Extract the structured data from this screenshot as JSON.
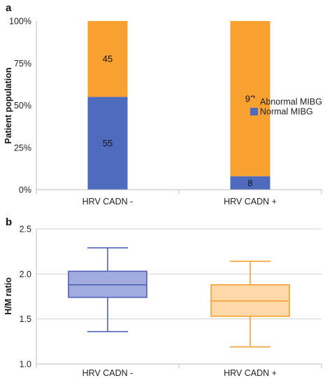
{
  "chart_data": [
    {
      "panel": "a",
      "type": "bar",
      "stacked": true,
      "categories": [
        "HRV CADN -",
        "HRV CADN +"
      ],
      "series": [
        {
          "name": "Normal MIBG",
          "values": [
            55,
            8
          ],
          "color": "#4f6bbd"
        },
        {
          "name": "Abnormal MIBG",
          "values": [
            45,
            92
          ],
          "color": "#f8a030"
        }
      ],
      "data_labels": [
        [
          "55",
          "45"
        ],
        [
          "8",
          "92"
        ]
      ],
      "xlabel": "",
      "ylabel": "Patient population",
      "yticks": [
        "0%",
        "25%",
        "50%",
        "75%",
        "100%"
      ],
      "ylim": [
        0,
        100
      ],
      "legend_position": "right",
      "grid": false
    },
    {
      "panel": "b",
      "type": "box",
      "categories": [
        "HRV CADN -",
        "HRV CADN +"
      ],
      "boxes": [
        {
          "min": 1.36,
          "q1": 1.74,
          "median": 1.88,
          "q3": 2.03,
          "max": 2.29,
          "fill": "#a3acdf",
          "stroke": "#4f62b8"
        },
        {
          "min": 1.19,
          "q1": 1.53,
          "median": 1.7,
          "q3": 1.88,
          "max": 2.14,
          "fill": "#fdd8a8",
          "stroke": "#f8a030"
        }
      ],
      "xlabel": "",
      "ylabel": "H/M ratio",
      "yticks": [
        "1.0",
        "1.5",
        "2.0",
        "2.5"
      ],
      "ylim": [
        1.0,
        2.5
      ],
      "grid": true
    }
  ]
}
